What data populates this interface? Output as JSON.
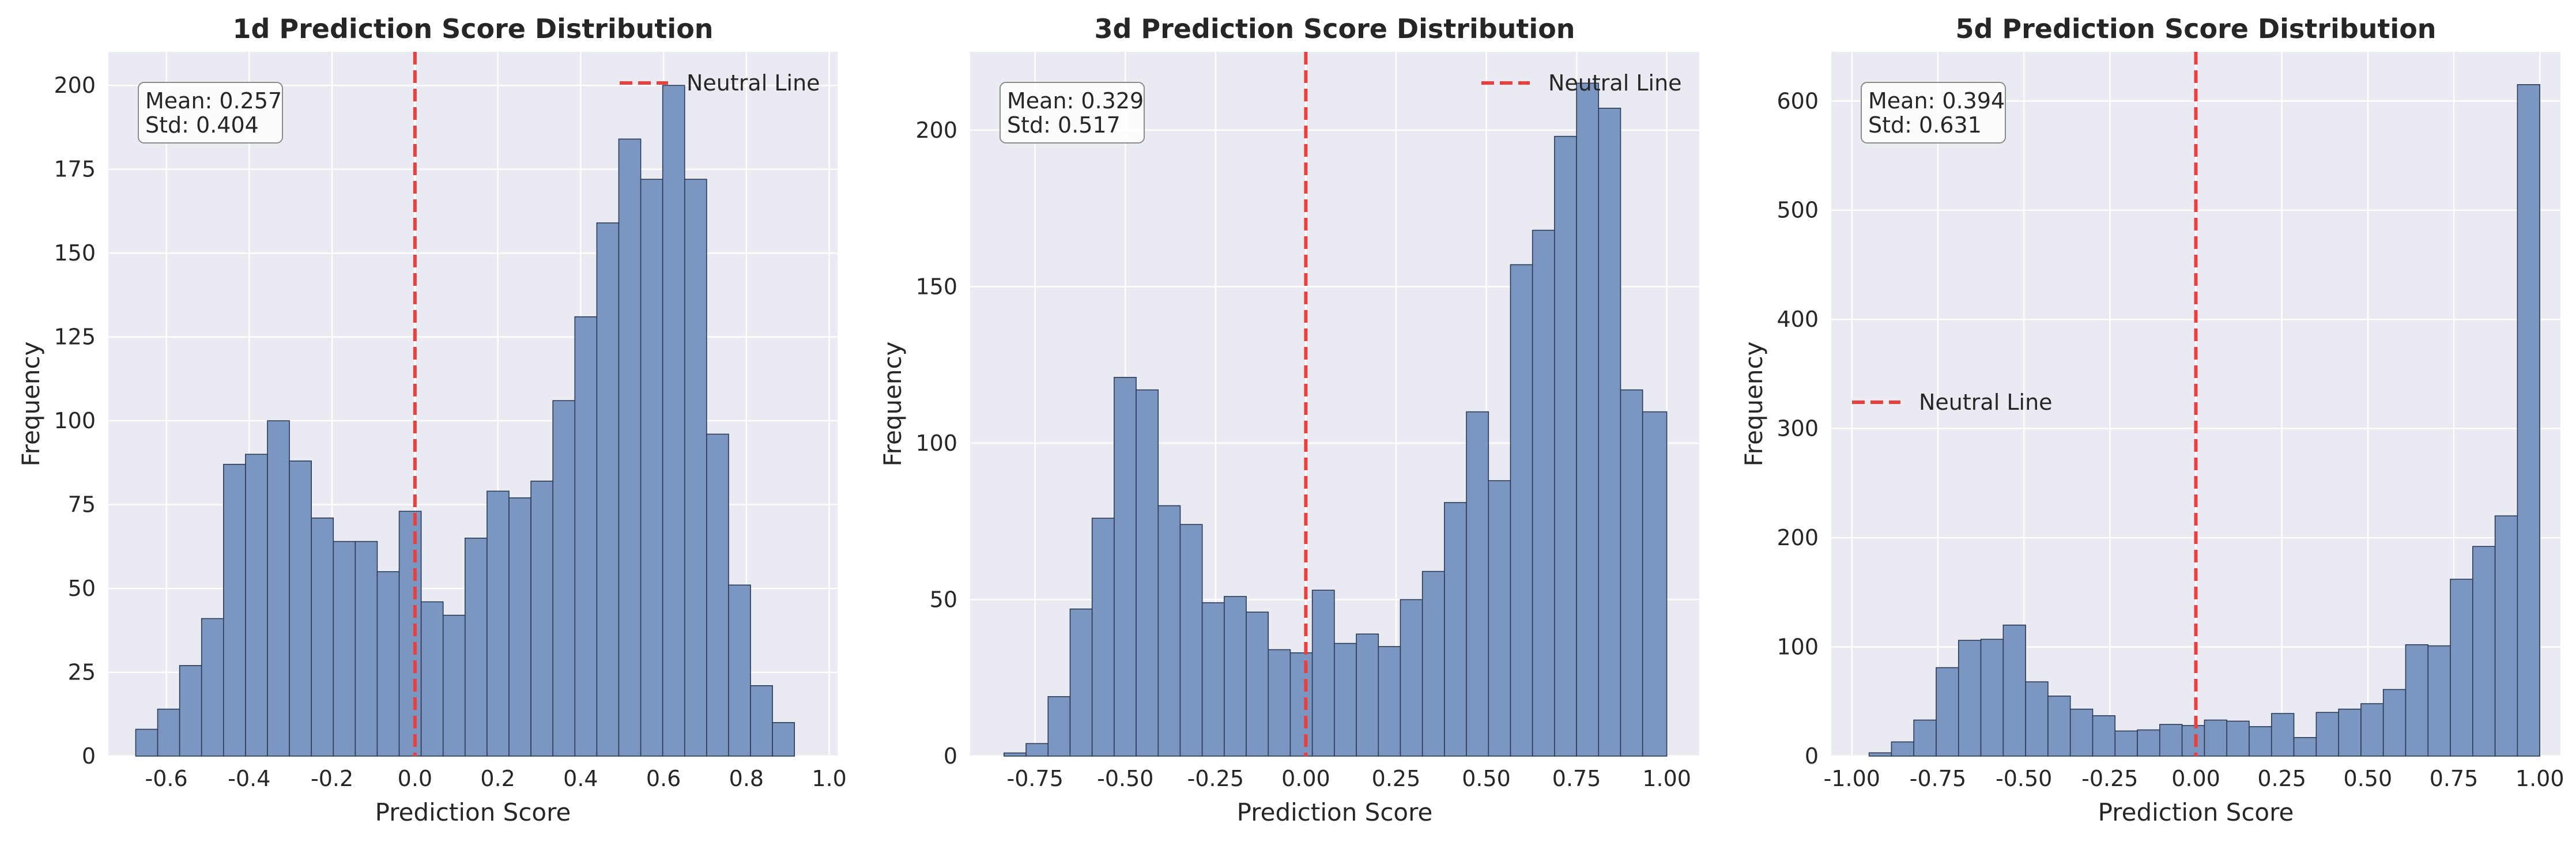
{
  "chart_data": [
    {
      "type": "bar",
      "title": "1d Prediction Score Distribution",
      "xlabel": "Prediction Score",
      "ylabel": "Frequency",
      "xlim": [
        -0.74,
        1.02
      ],
      "ylim": [
        0,
        210
      ],
      "xticks": [
        -0.6,
        -0.4,
        -0.2,
        0.0,
        0.2,
        0.4,
        0.6,
        0.8,
        1.0
      ],
      "xtick_labels": [
        "-0.6",
        "-0.4",
        "-0.2",
        "0.0",
        "0.2",
        "0.4",
        "0.6",
        "0.8",
        "1.0"
      ],
      "yticks": [
        0,
        25,
        50,
        75,
        100,
        125,
        150,
        175,
        200
      ],
      "ytick_labels": [
        "0",
        "25",
        "50",
        "75",
        "100",
        "125",
        "150",
        "175",
        "200"
      ],
      "bin_edges": [
        -0.674,
        -0.621,
        -0.568,
        -0.515,
        -0.462,
        -0.409,
        -0.356,
        -0.303,
        -0.25,
        -0.197,
        -0.144,
        -0.091,
        -0.038,
        0.015,
        0.068,
        0.121,
        0.174,
        0.227,
        0.28,
        0.333,
        0.386,
        0.439,
        0.492,
        0.545,
        0.598,
        0.651,
        0.704,
        0.757,
        0.81,
        0.863,
        0.916,
        0.969
      ],
      "values": [
        8,
        14,
        27,
        41,
        87,
        90,
        100,
        88,
        71,
        64,
        64,
        55,
        73,
        46,
        42,
        65,
        79,
        77,
        82,
        106,
        131,
        159,
        184,
        172,
        200,
        172,
        96,
        51,
        21,
        10,
        0
      ],
      "neutral_x": 0.0,
      "stats": {
        "mean": "Mean: 0.257",
        "std": "Std: 0.404"
      },
      "legend": {
        "label": "Neutral Line",
        "placement": "upper right"
      },
      "grid": true
    },
    {
      "type": "bar",
      "title": "3d Prediction Score Distribution",
      "xlabel": "Prediction Score",
      "ylabel": "Frequency",
      "xlim": [
        -0.93,
        1.09
      ],
      "ylim": [
        0,
        225
      ],
      "xticks": [
        -0.75,
        -0.5,
        -0.25,
        0.0,
        0.25,
        0.5,
        0.75,
        1.0
      ],
      "xtick_labels": [
        "-0.75",
        "-0.50",
        "-0.25",
        "0.00",
        "0.25",
        "0.50",
        "0.75",
        "1.00"
      ],
      "yticks": [
        0,
        50,
        100,
        150,
        200
      ],
      "ytick_labels": [
        "0",
        "50",
        "100",
        "150",
        "200"
      ],
      "bin_edges": [
        -0.836,
        -0.775,
        -0.714,
        -0.653,
        -0.592,
        -0.531,
        -0.47,
        -0.409,
        -0.348,
        -0.287,
        -0.226,
        -0.165,
        -0.104,
        -0.043,
        0.018,
        0.079,
        0.14,
        0.201,
        0.262,
        0.323,
        0.384,
        0.445,
        0.506,
        0.567,
        0.628,
        0.689,
        0.75,
        0.811,
        0.872,
        0.933,
        1.0
      ],
      "values": [
        1,
        4,
        19,
        47,
        76,
        121,
        117,
        80,
        74,
        49,
        51,
        46,
        34,
        33,
        53,
        36,
        39,
        35,
        50,
        59,
        81,
        110,
        88,
        157,
        168,
        198,
        215,
        207,
        117,
        110
      ],
      "neutral_x": 0.0,
      "stats": {
        "mean": "Mean: 0.329",
        "std": "Std: 0.517"
      },
      "legend": {
        "label": "Neutral Line",
        "placement": "upper right"
      },
      "grid": true
    },
    {
      "type": "bar",
      "title": "5d Prediction Score Distribution",
      "xlabel": "Prediction Score",
      "ylabel": "Frequency",
      "xlim": [
        -1.06,
        1.06
      ],
      "ylim": [
        0,
        645
      ],
      "xticks": [
        -1.0,
        -0.75,
        -0.5,
        -0.25,
        0.0,
        0.25,
        0.5,
        0.75,
        1.0
      ],
      "xtick_labels": [
        "-1.00",
        "-0.75",
        "-0.50",
        "-0.25",
        "0.00",
        "0.25",
        "0.50",
        "0.75",
        "1.00"
      ],
      "yticks": [
        0,
        100,
        200,
        300,
        400,
        500,
        600
      ],
      "ytick_labels": [
        "0",
        "100",
        "200",
        "300",
        "400",
        "500",
        "600"
      ],
      "bin_edges": [
        -0.95,
        -0.885,
        -0.82,
        -0.755,
        -0.69,
        -0.625,
        -0.56,
        -0.495,
        -0.43,
        -0.365,
        -0.3,
        -0.235,
        -0.17,
        -0.105,
        -0.04,
        0.025,
        0.09,
        0.155,
        0.22,
        0.285,
        0.35,
        0.415,
        0.48,
        0.545,
        0.61,
        0.675,
        0.74,
        0.805,
        0.87,
        0.935,
        1.0
      ],
      "values": [
        3,
        13,
        33,
        81,
        106,
        107,
        120,
        68,
        55,
        43,
        37,
        23,
        24,
        29,
        28,
        33,
        32,
        27,
        39,
        17,
        40,
        43,
        48,
        61,
        102,
        101,
        162,
        192,
        220,
        615
      ],
      "neutral_x": 0.0,
      "stats": {
        "mean": "Mean: 0.394",
        "std": "Std: 0.631"
      },
      "legend": {
        "label": "Neutral Line",
        "placement": "center left"
      },
      "grid": true
    }
  ],
  "colors": {
    "bar_fill": "#7c96c2",
    "bar_edge": "#2b3a55",
    "neutral_line": "#e8403c",
    "plot_background": "#eaeaf2",
    "grid": "#ffffff"
  }
}
